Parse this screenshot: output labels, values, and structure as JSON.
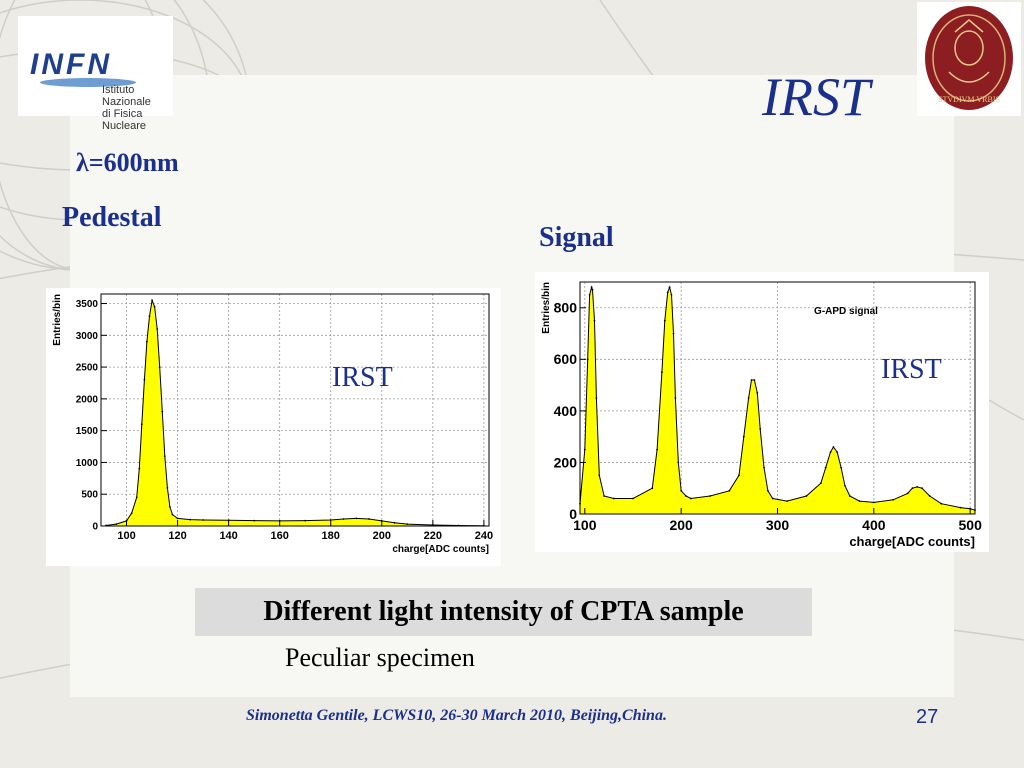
{
  "slide": {
    "title": "IRST",
    "lambda_label": "λ=600nm",
    "pedestal_label": "Pedestal",
    "signal_label": "Signal",
    "caption": "Different light intensity  of CPTA sample",
    "note": "Peculiar specimen",
    "footer": "Simonetta Gentile,  LCWS10, 26-30 March 2010, Beijing,China.",
    "page_number": "27",
    "logo_infn": {
      "mark": "INFN",
      "line1": "Istituto Nazionale",
      "line2": "di Fisica Nucleare"
    },
    "logo_sapienza": {
      "text": "STVDIVM VRBIS"
    },
    "colors": {
      "title": "#1b2f8c",
      "fill": "#ffff00",
      "caption_bg": "#dcdcdc",
      "footer": "#1b2f8c"
    }
  },
  "chart_data": [
    {
      "type": "area",
      "title": "",
      "overlay_label": "IRST",
      "xlabel": "charge[ADC counts]",
      "ylabel": "Entries/bin",
      "xlim": [
        90,
        242
      ],
      "ylim": [
        0,
        3650
      ],
      "x_ticks": [
        100,
        120,
        140,
        160,
        180,
        200,
        220,
        240
      ],
      "y_ticks": [
        0,
        500,
        1000,
        1500,
        2000,
        2500,
        3000,
        3500
      ],
      "x_tick_labels": [
        "100",
        "120",
        "140",
        "160",
        "180",
        "200",
        "220",
        "240"
      ],
      "y_tick_labels": [
        "0",
        "500",
        "1000",
        "1500",
        "2000",
        "2500",
        "3000",
        "3500"
      ],
      "grid": true,
      "x": [
        92,
        96,
        100,
        102,
        104,
        105,
        106,
        107,
        108,
        109,
        110,
        111,
        112,
        113,
        114,
        115,
        116,
        117,
        118,
        120,
        125,
        130,
        140,
        150,
        160,
        170,
        180,
        185,
        190,
        195,
        200,
        205,
        210,
        220,
        230,
        240
      ],
      "values": [
        10,
        30,
        80,
        200,
        450,
        900,
        1600,
        2300,
        2900,
        3300,
        3550,
        3450,
        3100,
        2500,
        1800,
        1100,
        600,
        300,
        180,
        120,
        100,
        95,
        90,
        85,
        80,
        85,
        95,
        110,
        120,
        110,
        80,
        50,
        30,
        15,
        8,
        5
      ]
    },
    {
      "type": "area",
      "title": "G-APD  signal",
      "overlay_label": "IRST",
      "xlabel": "charge[ADC counts]",
      "ylabel": "Entries/bin",
      "xlim": [
        95,
        505
      ],
      "ylim": [
        0,
        900
      ],
      "x_ticks": [
        100,
        200,
        300,
        400,
        500
      ],
      "y_ticks": [
        0,
        200,
        400,
        600,
        800
      ],
      "x_tick_labels": [
        "100",
        "200",
        "300",
        "400",
        "500"
      ],
      "y_tick_labels": [
        "0",
        "200",
        "400",
        "600",
        "800"
      ],
      "grid": true,
      "x": [
        95,
        100,
        103,
        105,
        107,
        108,
        110,
        112,
        115,
        120,
        130,
        150,
        170,
        175,
        180,
        183,
        186,
        188,
        190,
        192,
        194,
        197,
        200,
        205,
        210,
        230,
        250,
        260,
        265,
        270,
        273,
        276,
        279,
        282,
        286,
        290,
        295,
        310,
        330,
        345,
        350,
        355,
        358,
        362,
        366,
        370,
        375,
        385,
        400,
        420,
        435,
        440,
        445,
        450,
        458,
        470,
        490,
        500,
        505
      ],
      "values": [
        40,
        250,
        600,
        850,
        880,
        870,
        750,
        450,
        150,
        70,
        60,
        60,
        100,
        250,
        550,
        750,
        860,
        880,
        850,
        700,
        450,
        200,
        90,
        70,
        60,
        70,
        90,
        150,
        300,
        450,
        520,
        520,
        470,
        330,
        180,
        90,
        60,
        50,
        70,
        120,
        180,
        240,
        260,
        240,
        180,
        110,
        70,
        50,
        45,
        55,
        80,
        100,
        105,
        100,
        70,
        40,
        25,
        20,
        15
      ]
    }
  ]
}
